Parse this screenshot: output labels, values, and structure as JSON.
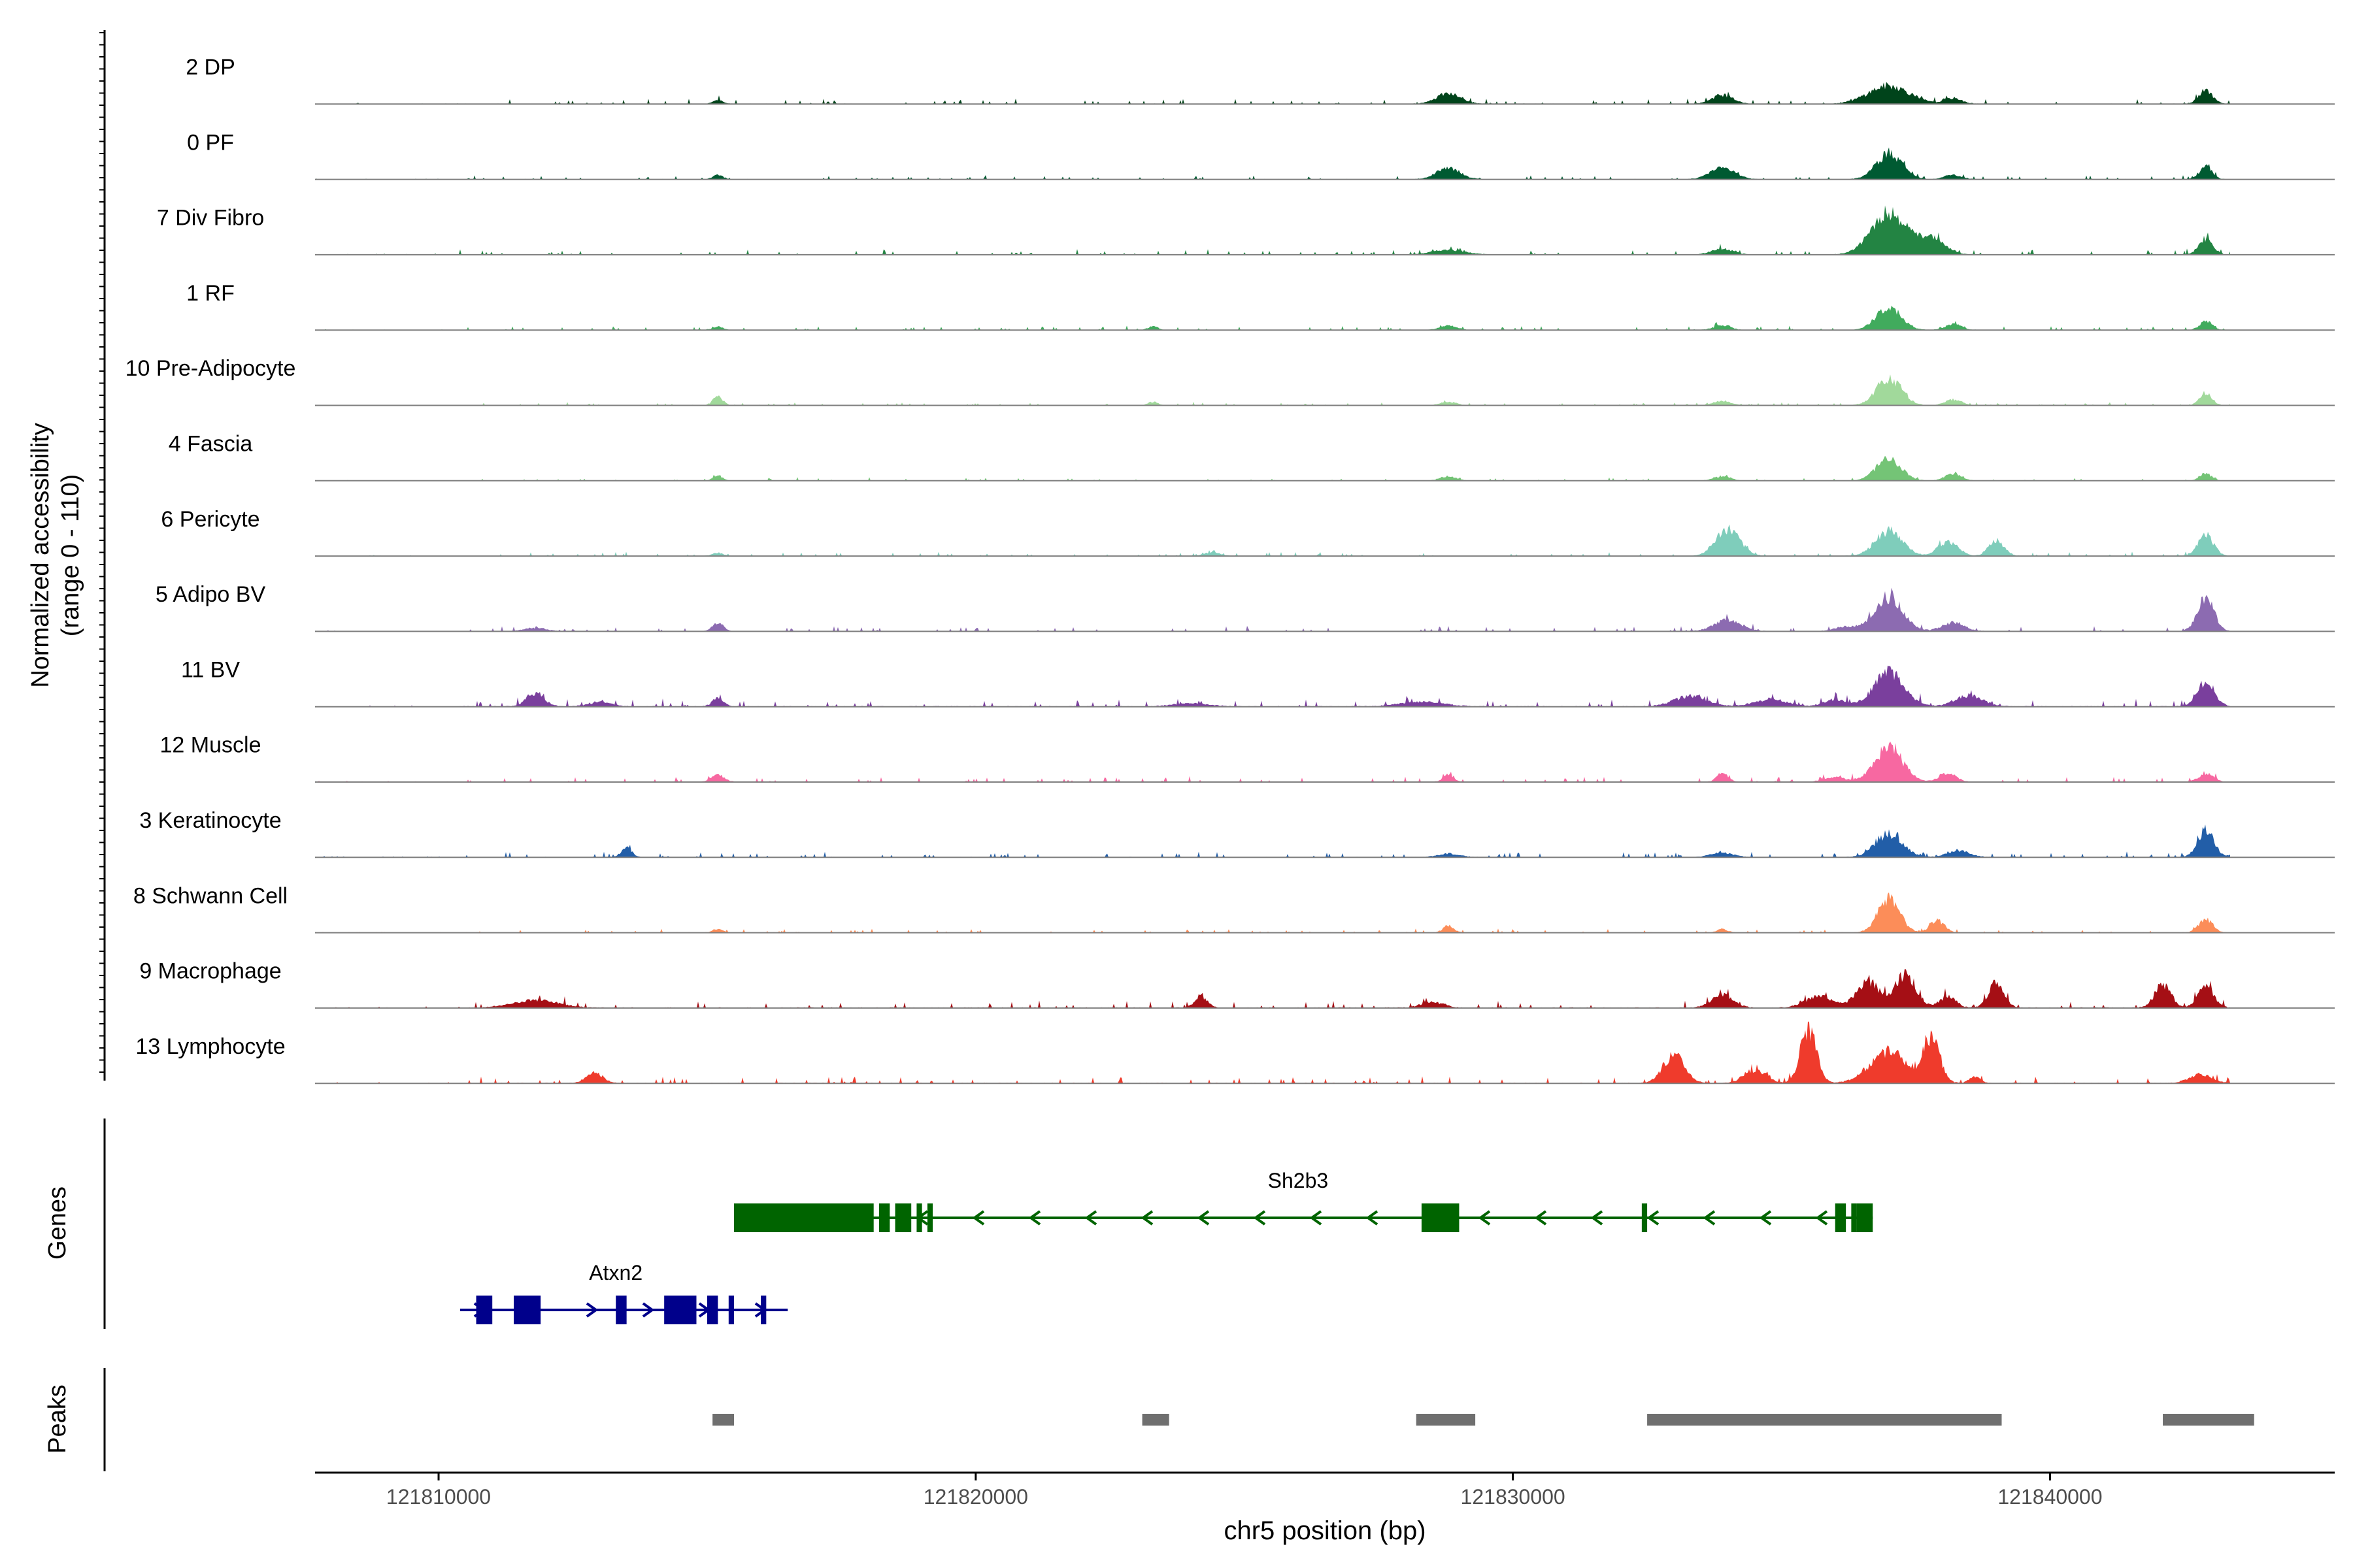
{
  "chart_data": {
    "type": "area",
    "ylabel_line1": "Normalized accessibility",
    "ylabel_line2": "(range 0 - 110)",
    "xlabel": "chr5 position (bp)",
    "xlim": [
      121807700,
      121845300
    ],
    "x_ticks": [
      121810000,
      121820000,
      121830000,
      121840000
    ],
    "x_tick_labels": [
      "121810000",
      "121820000",
      "121830000",
      "121840000"
    ],
    "genes_label": "Genes",
    "peaks_label": "Peaks",
    "tracks": [
      {
        "name": "2 DP",
        "color": "#00441b",
        "base": 2,
        "peaks": [
          [
            121815200,
            4,
            90
          ],
          [
            121828800,
            9,
            230
          ],
          [
            121833900,
            8,
            200
          ],
          [
            121837000,
            16,
            380
          ],
          [
            121838200,
            5,
            160
          ],
          [
            121842900,
            12,
            130
          ]
        ]
      },
      {
        "name": "0 PF",
        "color": "#005a32",
        "base": 1.5,
        "peaks": [
          [
            121815200,
            4,
            90
          ],
          [
            121828800,
            10,
            220
          ],
          [
            121833900,
            10,
            230
          ],
          [
            121837000,
            22,
            240
          ],
          [
            121838200,
            4,
            160
          ],
          [
            121842900,
            11,
            120
          ]
        ]
      },
      {
        "name": "7 Div Fibro",
        "color": "#238443",
        "base": 2,
        "peaks": [
          [
            121828800,
            4,
            300
          ],
          [
            121833900,
            5,
            200
          ],
          [
            121837000,
            38,
            320
          ],
          [
            121837800,
            14,
            250
          ],
          [
            121842900,
            14,
            130
          ]
        ]
      },
      {
        "name": "1 RF",
        "color": "#41ab5d",
        "base": 1.5,
        "peaks": [
          [
            121815200,
            3,
            90
          ],
          [
            121823300,
            3,
            90
          ],
          [
            121828800,
            4,
            150
          ],
          [
            121833900,
            4,
            150
          ],
          [
            121837000,
            20,
            230
          ],
          [
            121838200,
            5,
            150
          ],
          [
            121842900,
            8,
            110
          ]
        ]
      },
      {
        "name": "10 Pre-Adipocyte",
        "color": "#a1d99b",
        "base": 1.2,
        "peaks": [
          [
            121815200,
            8,
            90
          ],
          [
            121823300,
            3,
            90
          ],
          [
            121828800,
            3,
            150
          ],
          [
            121833900,
            4,
            150
          ],
          [
            121837000,
            24,
            230
          ],
          [
            121838200,
            5,
            150
          ],
          [
            121842900,
            11,
            110
          ]
        ]
      },
      {
        "name": "4 Fascia",
        "color": "#74c476",
        "base": 1.2,
        "peaks": [
          [
            121815200,
            4,
            90
          ],
          [
            121828800,
            4,
            150
          ],
          [
            121833900,
            4,
            150
          ],
          [
            121837000,
            20,
            230
          ],
          [
            121838200,
            6,
            150
          ],
          [
            121842900,
            6,
            110
          ]
        ]
      },
      {
        "name": "6 Pericyte",
        "color": "#7fcdbb",
        "base": 1.5,
        "peaks": [
          [
            121815200,
            3,
            90
          ],
          [
            121824400,
            3,
            150
          ],
          [
            121834000,
            24,
            220
          ],
          [
            121837000,
            22,
            250
          ],
          [
            121838100,
            13,
            180
          ],
          [
            121839000,
            14,
            140
          ],
          [
            121842900,
            19,
            140
          ]
        ]
      },
      {
        "name": "5 Adipo BV",
        "color": "#8c6bb1",
        "base": 2,
        "peaks": [
          [
            121811800,
            3,
            200
          ],
          [
            121815200,
            7,
            100
          ],
          [
            121834000,
            10,
            250
          ],
          [
            121836200,
            4,
            200
          ],
          [
            121837000,
            30,
            260
          ],
          [
            121838200,
            8,
            200
          ],
          [
            121842900,
            30,
            150
          ]
        ]
      },
      {
        "name": "11 BV",
        "color": "#7a3f9d",
        "base": 3,
        "peaks": [
          [
            121811800,
            12,
            160
          ],
          [
            121813000,
            4,
            200
          ],
          [
            121815200,
            8,
            100
          ],
          [
            121824000,
            3,
            300
          ],
          [
            121828300,
            4,
            400
          ],
          [
            121833300,
            9,
            300
          ],
          [
            121834800,
            6,
            300
          ],
          [
            121836000,
            6,
            200
          ],
          [
            121837000,
            30,
            280
          ],
          [
            121838500,
            10,
            250
          ],
          [
            121842900,
            22,
            160
          ]
        ]
      },
      {
        "name": "12 Muscle",
        "color": "#f768a1",
        "base": 2,
        "peaks": [
          [
            121815200,
            6,
            120
          ],
          [
            121828800,
            6,
            100
          ],
          [
            121833900,
            8,
            100
          ],
          [
            121836000,
            4,
            200
          ],
          [
            121837000,
            30,
            260
          ],
          [
            121838100,
            8,
            150
          ],
          [
            121842900,
            7,
            140
          ]
        ]
      },
      {
        "name": "3 Keratinocyte",
        "color": "#225ea8",
        "base": 2,
        "peaks": [
          [
            121813500,
            8,
            100
          ],
          [
            121828800,
            3,
            200
          ],
          [
            121833900,
            4,
            200
          ],
          [
            121837000,
            21,
            250
          ],
          [
            121838300,
            6,
            200
          ],
          [
            121842900,
            24,
            150
          ],
          [
            121843500,
            6,
            100
          ]
        ]
      },
      {
        "name": "8 Schwann Cell",
        "color": "#fc8d59",
        "base": 1.5,
        "peaks": [
          [
            121815200,
            3,
            90
          ],
          [
            121828800,
            6,
            100
          ],
          [
            121833900,
            3,
            100
          ],
          [
            121837000,
            30,
            200
          ],
          [
            121837900,
            11,
            130
          ],
          [
            121842900,
            12,
            130
          ]
        ]
      },
      {
        "name": "9 Macrophage",
        "color": "#a50f15",
        "base": 3,
        "peaks": [
          [
            121811800,
            7,
            400
          ],
          [
            121824200,
            10,
            120
          ],
          [
            121828500,
            5,
            200
          ],
          [
            121833900,
            11,
            200
          ],
          [
            121835700,
            10,
            250
          ],
          [
            121836600,
            24,
            200
          ],
          [
            121837300,
            30,
            200
          ],
          [
            121838100,
            10,
            150
          ],
          [
            121839000,
            23,
            140
          ],
          [
            121842100,
            20,
            150
          ],
          [
            121842900,
            18,
            150
          ]
        ]
      },
      {
        "name": "13 Lymphocyte",
        "color": "#ef3b2c",
        "base": 2.5,
        "peaks": [
          [
            121812900,
            10,
            150
          ],
          [
            121833000,
            24,
            200
          ],
          [
            121834500,
            12,
            200
          ],
          [
            121835500,
            48,
            150
          ],
          [
            121837000,
            28,
            350
          ],
          [
            121837800,
            40,
            150
          ],
          [
            121838600,
            6,
            100
          ],
          [
            121842800,
            8,
            200
          ]
        ]
      }
    ],
    "genes": [
      {
        "name": "Sh2b3",
        "strand": "-",
        "color": "#006400",
        "start": 121815500,
        "end": 121836700,
        "row": 0,
        "exons": [
          [
            121815500,
            121818100
          ],
          [
            121818200,
            121818400
          ],
          [
            121818500,
            121818800
          ],
          [
            121818900,
            121819000
          ],
          [
            121819100,
            121819200
          ],
          [
            121828300,
            121829000
          ],
          [
            121832400,
            121832500
          ],
          [
            121836000,
            121836200
          ],
          [
            121836300,
            121836400
          ],
          [
            121836400,
            121836700
          ]
        ]
      },
      {
        "name": "Atxn2",
        "strand": "+",
        "color": "#00008b",
        "start": 121810400,
        "end": 121816500,
        "row": 1,
        "exons": [
          [
            121810700,
            121811000
          ],
          [
            121811400,
            121811900
          ],
          [
            121813300,
            121813500
          ],
          [
            121814200,
            121814800
          ],
          [
            121815000,
            121815200
          ],
          [
            121815400,
            121815500
          ],
          [
            121816000,
            121816100
          ]
        ]
      }
    ],
    "peaks": [
      {
        "start": 121815100,
        "end": 121815500
      },
      {
        "start": 121823100,
        "end": 121823600
      },
      {
        "start": 121828200,
        "end": 121829300
      },
      {
        "start": 121832500,
        "end": 121839100
      },
      {
        "start": 121842100,
        "end": 121843800
      }
    ]
  }
}
